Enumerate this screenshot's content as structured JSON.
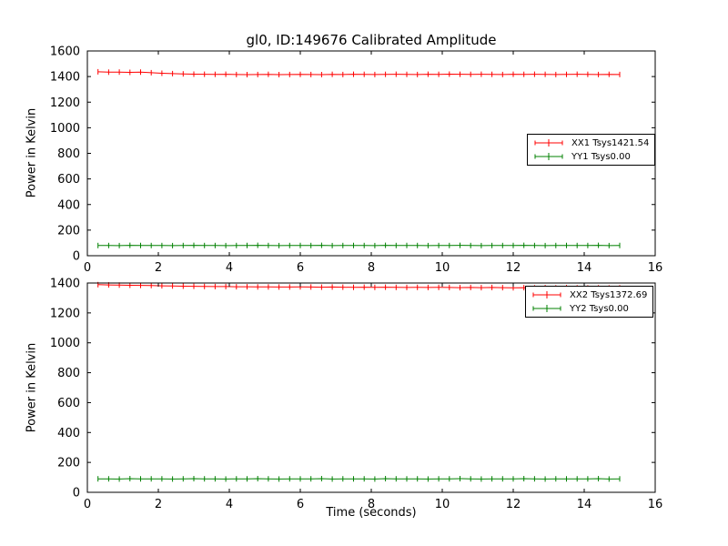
{
  "figure": {
    "title": "gl0, ID:149676 Calibrated Amplitude",
    "xlabel": "Time (seconds)",
    "ylabel": "Power in Kelvin"
  },
  "chart_data": [
    {
      "type": "line",
      "title": "gl0, ID:149676 Calibrated Amplitude",
      "ylabel": "Power in Kelvin",
      "xlabel": "",
      "xlim": [
        0,
        16
      ],
      "ylim": [
        0,
        1600
      ],
      "xticks": [
        0,
        2,
        4,
        6,
        8,
        10,
        12,
        14,
        16
      ],
      "yticks": [
        0,
        200,
        400,
        600,
        800,
        1000,
        1200,
        1400,
        1600
      ],
      "grid": false,
      "legend_position": "center right",
      "marker": "errorbar",
      "x": [
        0.3,
        0.6,
        0.9,
        1.2,
        1.5,
        1.8,
        2.1,
        2.4,
        2.7,
        3.0,
        3.3,
        3.6,
        3.9,
        4.2,
        4.5,
        4.8,
        5.1,
        5.4,
        5.7,
        6.0,
        6.3,
        6.6,
        6.9,
        7.2,
        7.5,
        7.8,
        8.1,
        8.4,
        8.7,
        9.0,
        9.3,
        9.6,
        9.9,
        10.2,
        10.5,
        10.8,
        11.1,
        11.4,
        11.7,
        12.0,
        12.3,
        12.6,
        12.9,
        13.2,
        13.5,
        13.8,
        14.1,
        14.4,
        14.7,
        15.0
      ],
      "series": [
        {
          "name": "XX1 Tsys1421.54",
          "tsys": 1421.54,
          "color": "#ff0000",
          "values": [
            1437,
            1434,
            1435,
            1433,
            1434,
            1430,
            1426,
            1423,
            1421,
            1419,
            1418,
            1417,
            1418,
            1416,
            1415,
            1416,
            1417,
            1415,
            1416,
            1417,
            1416,
            1415,
            1417,
            1416,
            1418,
            1417,
            1416,
            1417,
            1418,
            1417,
            1416,
            1418,
            1417,
            1419,
            1418,
            1417,
            1418,
            1417,
            1416,
            1418,
            1417,
            1418,
            1417,
            1416,
            1417,
            1418,
            1417,
            1416,
            1417,
            1416
          ]
        },
        {
          "name": "YY1 Tsys0.00",
          "tsys": 0.0,
          "color": "#008000",
          "values": [
            80,
            80,
            79,
            81,
            80,
            80,
            80,
            79,
            80,
            81,
            80,
            80,
            79,
            80,
            80,
            81,
            80,
            79,
            80,
            80,
            80,
            81,
            79,
            80,
            80,
            80,
            79,
            81,
            80,
            80,
            80,
            79,
            80,
            80,
            81,
            80,
            79,
            80,
            80,
            80,
            81,
            80,
            79,
            80,
            80,
            80,
            80,
            81,
            79,
            80
          ]
        }
      ]
    },
    {
      "type": "line",
      "title": "",
      "ylabel": "Power in Kelvin",
      "xlabel": "Time (seconds)",
      "xlim": [
        0,
        16
      ],
      "ylim": [
        0,
        1400
      ],
      "xticks": [
        0,
        2,
        4,
        6,
        8,
        10,
        12,
        14,
        16
      ],
      "yticks": [
        0,
        200,
        400,
        600,
        800,
        1000,
        1200,
        1400
      ],
      "grid": false,
      "legend_position": "upper right",
      "marker": "errorbar",
      "x": [
        0.3,
        0.6,
        0.9,
        1.2,
        1.5,
        1.8,
        2.1,
        2.4,
        2.7,
        3.0,
        3.3,
        3.6,
        3.9,
        4.2,
        4.5,
        4.8,
        5.1,
        5.4,
        5.7,
        6.0,
        6.3,
        6.6,
        6.9,
        7.2,
        7.5,
        7.8,
        8.1,
        8.4,
        8.7,
        9.0,
        9.3,
        9.6,
        9.9,
        10.2,
        10.5,
        10.8,
        11.1,
        11.4,
        11.7,
        12.0,
        12.3,
        12.6,
        12.9,
        13.2,
        13.5,
        13.8,
        14.1,
        14.4,
        14.7,
        15.0
      ],
      "series": [
        {
          "name": "XX2 Tsys1372.69",
          "tsys": 1372.69,
          "color": "#ff0000",
          "values": [
            1389,
            1387,
            1386,
            1385,
            1384,
            1383,
            1381,
            1380,
            1379,
            1378,
            1377,
            1376,
            1376,
            1375,
            1375,
            1374,
            1374,
            1373,
            1373,
            1374,
            1373,
            1372,
            1373,
            1372,
            1371,
            1372,
            1371,
            1372,
            1371,
            1370,
            1371,
            1370,
            1371,
            1370,
            1369,
            1370,
            1369,
            1370,
            1369,
            1368,
            1369,
            1368,
            1369,
            1368,
            1369,
            1368,
            1367,
            1368,
            1367,
            1368
          ]
        },
        {
          "name": "YY2 Tsys0.00",
          "tsys": 0.0,
          "color": "#008000",
          "values": [
            90,
            90,
            89,
            91,
            90,
            90,
            90,
            89,
            90,
            91,
            90,
            90,
            89,
            90,
            90,
            91,
            90,
            89,
            90,
            90,
            90,
            91,
            89,
            90,
            90,
            90,
            89,
            91,
            90,
            90,
            90,
            89,
            90,
            90,
            91,
            90,
            89,
            90,
            90,
            90,
            91,
            90,
            89,
            90,
            90,
            90,
            90,
            91,
            89,
            90
          ]
        }
      ]
    }
  ]
}
